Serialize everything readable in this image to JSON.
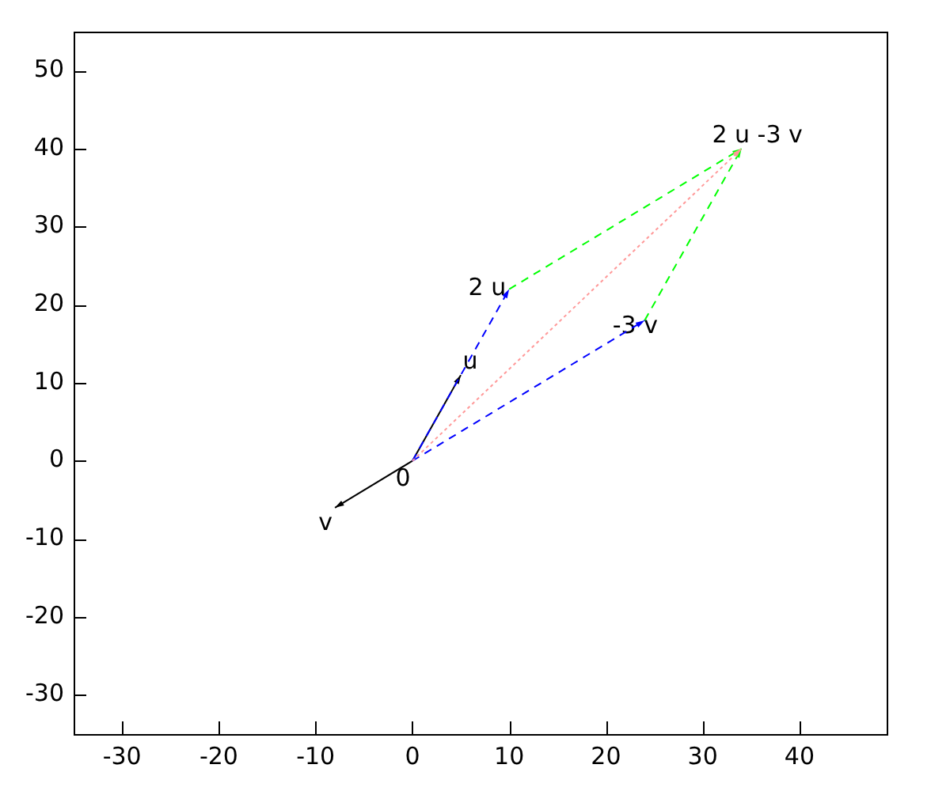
{
  "chart_data": {
    "type": "line",
    "xlim": [
      -35,
      49
    ],
    "ylim": [
      -35,
      55
    ],
    "xticks": [
      -30,
      -20,
      -10,
      0,
      10,
      20,
      30,
      40
    ],
    "yticks": [
      -30,
      -20,
      -10,
      0,
      10,
      20,
      30,
      40,
      50
    ],
    "grid": false,
    "legend": false,
    "marker": "none",
    "series": [
      {
        "color": "#000000",
        "line_style": "solid",
        "x": [
          0,
          5
        ],
        "values": [
          0,
          11
        ]
      },
      {
        "color": "#000000",
        "line_style": "solid",
        "x": [
          0,
          -8
        ],
        "values": [
          0,
          -6
        ]
      },
      {
        "color": "#0000ff",
        "line_style": "dashed",
        "x": [
          0,
          10
        ],
        "values": [
          0,
          22
        ]
      },
      {
        "color": "#0000ff",
        "line_style": "dashed",
        "x": [
          0,
          24
        ],
        "values": [
          0,
          18
        ]
      },
      {
        "color": "#00ff00",
        "line_style": "dashed",
        "x": [
          10,
          34
        ],
        "values": [
          22,
          40
        ]
      },
      {
        "color": "#00ff00",
        "line_style": "dashed",
        "x": [
          24,
          34
        ],
        "values": [
          18,
          40
        ]
      },
      {
        "color": "#ff9999",
        "line_style": "dotted",
        "x": [
          0,
          34
        ],
        "values": [
          0,
          40
        ]
      }
    ],
    "annotations": [
      {
        "text": "0",
        "x": 0,
        "y": 0
      },
      {
        "text": "u",
        "x": 5,
        "y": 11
      },
      {
        "text": "v",
        "x": -8,
        "y": -6
      },
      {
        "text": "2 u",
        "x": 10,
        "y": 22
      },
      {
        "text": "-3 v",
        "x": 24,
        "y": 18
      },
      {
        "text": "2 u -3 v",
        "x": 34,
        "y": 40
      }
    ]
  }
}
